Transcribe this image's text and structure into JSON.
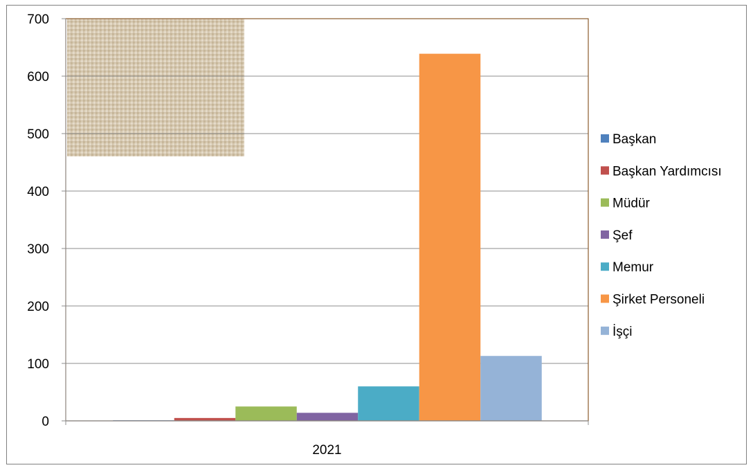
{
  "chart_data": {
    "type": "bar",
    "categories": [
      "2021"
    ],
    "series": [
      {
        "name": "Başkan",
        "values": [
          1
        ],
        "color": "#4F81BD"
      },
      {
        "name": "Başkan Yardımcısı",
        "values": [
          5
        ],
        "color": "#C0504D"
      },
      {
        "name": "Müdür",
        "values": [
          25
        ],
        "color": "#9BBB59"
      },
      {
        "name": "Şef",
        "values": [
          14
        ],
        "color": "#8064A2"
      },
      {
        "name": "Memur",
        "values": [
          60
        ],
        "color": "#4BACC6"
      },
      {
        "name": "Şirket Personeli",
        "values": [
          639
        ],
        "color": "#F79646"
      },
      {
        "name": "İşçi",
        "values": [
          113
        ],
        "color": "#95B3D7"
      }
    ],
    "yticks": [
      "0",
      "100",
      "200",
      "300",
      "400",
      "500",
      "600",
      "700"
    ],
    "ylim": [
      0,
      700
    ],
    "grid": true,
    "legend_position": "right"
  }
}
